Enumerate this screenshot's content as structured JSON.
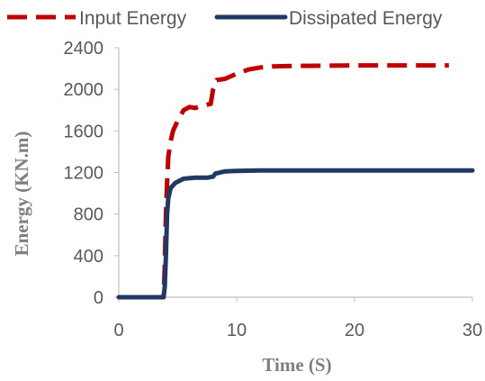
{
  "chart_data": {
    "type": "line",
    "xlabel": "Time (S)",
    "ylabel": "Energy (KN.m)",
    "xlim": [
      0,
      30
    ],
    "ylim": [
      0,
      2400
    ],
    "xticks": [
      "0",
      "10",
      "20",
      "30"
    ],
    "yticks": [
      "0",
      "400",
      "800",
      "1200",
      "1600",
      "2000",
      "2400"
    ],
    "grid": false,
    "legend_position": "top",
    "series": [
      {
        "name": "Input Energy",
        "color": "#c00000",
        "style": "dashed",
        "points": [
          [
            0,
            0
          ],
          [
            3.8,
            0
          ],
          [
            3.9,
            300
          ],
          [
            4.0,
            800
          ],
          [
            4.1,
            1100
          ],
          [
            4.2,
            1350
          ],
          [
            4.4,
            1500
          ],
          [
            4.6,
            1600
          ],
          [
            5.0,
            1700
          ],
          [
            5.5,
            1800
          ],
          [
            6.0,
            1830
          ],
          [
            6.5,
            1820
          ],
          [
            7.0,
            1840
          ],
          [
            7.8,
            1860
          ],
          [
            8.0,
            2000
          ],
          [
            8.3,
            2090
          ],
          [
            9.0,
            2100
          ],
          [
            10.0,
            2150
          ],
          [
            11.0,
            2190
          ],
          [
            12.0,
            2210
          ],
          [
            13.0,
            2220
          ],
          [
            15.0,
            2225
          ],
          [
            20.0,
            2230
          ],
          [
            25.0,
            2230
          ],
          [
            28.0,
            2230
          ]
        ]
      },
      {
        "name": "Dissipated Energy",
        "color": "#1f3864",
        "style": "solid",
        "points": [
          [
            0,
            0
          ],
          [
            3.8,
            0
          ],
          [
            3.9,
            100
          ],
          [
            4.0,
            400
          ],
          [
            4.1,
            800
          ],
          [
            4.2,
            950
          ],
          [
            4.4,
            1050
          ],
          [
            4.8,
            1100
          ],
          [
            5.5,
            1140
          ],
          [
            6.5,
            1150
          ],
          [
            7.5,
            1150
          ],
          [
            8.0,
            1160
          ],
          [
            8.2,
            1190
          ],
          [
            9.0,
            1210
          ],
          [
            10.0,
            1215
          ],
          [
            12.0,
            1220
          ],
          [
            20.0,
            1220
          ],
          [
            30.0,
            1220
          ]
        ]
      }
    ]
  }
}
